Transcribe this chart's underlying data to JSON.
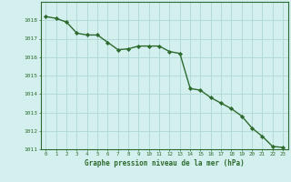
{
  "x": [
    0,
    1,
    2,
    3,
    4,
    5,
    6,
    7,
    8,
    9,
    10,
    11,
    12,
    13,
    14,
    15,
    16,
    17,
    18,
    19,
    20,
    21,
    22,
    23
  ],
  "y": [
    1018.2,
    1018.1,
    1017.9,
    1017.3,
    1017.2,
    1017.2,
    1016.8,
    1016.4,
    1016.45,
    1016.6,
    1016.6,
    1016.6,
    1016.3,
    1016.2,
    1014.3,
    1014.2,
    1013.8,
    1013.5,
    1013.2,
    1012.8,
    1012.15,
    1011.7,
    1011.15,
    1011.1
  ],
  "line_color": "#2d6a2d",
  "marker_color": "#2d6a2d",
  "bg_color": "#d4f0ee",
  "grid_color": "#b0d8d4",
  "axis_color": "#2d6a2d",
  "tick_label_color": "#2d6a2d",
  "xlabel": "Graphe pression niveau de la mer (hPa)",
  "xlabel_color": "#2d6a2d",
  "ylim": [
    1011,
    1019
  ],
  "yticks": [
    1011,
    1012,
    1013,
    1014,
    1015,
    1016,
    1017,
    1018
  ],
  "xticks": [
    0,
    1,
    2,
    3,
    4,
    5,
    6,
    7,
    8,
    9,
    10,
    11,
    12,
    13,
    14,
    15,
    16,
    17,
    18,
    19,
    20,
    21,
    22,
    23
  ],
  "line_width": 1.0,
  "marker_size": 2.2
}
